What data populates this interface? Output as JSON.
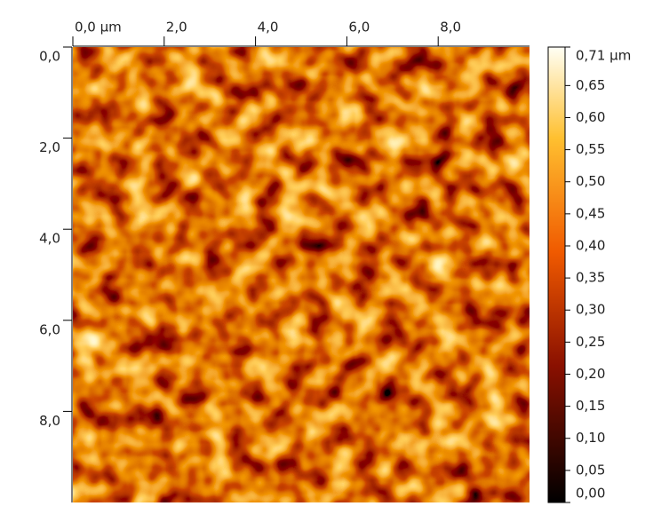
{
  "chart_data": {
    "type": "heatmap",
    "xlim": [
      0,
      10
    ],
    "ylim": [
      0,
      10
    ],
    "xticks": [
      {
        "value": 0,
        "label": "0,0 µm"
      },
      {
        "value": 2,
        "label": "2,0"
      },
      {
        "value": 4,
        "label": "4,0"
      },
      {
        "value": 6,
        "label": "6,0"
      },
      {
        "value": 8,
        "label": "8,0"
      }
    ],
    "yticks": [
      {
        "value": 0,
        "label": "0,0"
      },
      {
        "value": 2,
        "label": "2,0"
      },
      {
        "value": 4,
        "label": "4,0"
      },
      {
        "value": 6,
        "label": "6,0"
      },
      {
        "value": 8,
        "label": "8,0"
      }
    ],
    "colorbar": {
      "lim": [
        0,
        0.71
      ],
      "ticks": [
        {
          "value": 0.71,
          "label": "0,71 µm"
        },
        {
          "value": 0.65,
          "label": "0,65"
        },
        {
          "value": 0.6,
          "label": "0,60"
        },
        {
          "value": 0.55,
          "label": "0,55"
        },
        {
          "value": 0.5,
          "label": "0,50"
        },
        {
          "value": 0.45,
          "label": "0,45"
        },
        {
          "value": 0.4,
          "label": "0,40"
        },
        {
          "value": 0.35,
          "label": "0,35"
        },
        {
          "value": 0.3,
          "label": "0,30"
        },
        {
          "value": 0.25,
          "label": "0,25"
        },
        {
          "value": 0.2,
          "label": "0,20"
        },
        {
          "value": 0.15,
          "label": "0,15"
        },
        {
          "value": 0.1,
          "label": "0,10"
        },
        {
          "value": 0.05,
          "label": "0,05"
        },
        {
          "value": 0,
          "label": "0,00"
        }
      ]
    }
  }
}
